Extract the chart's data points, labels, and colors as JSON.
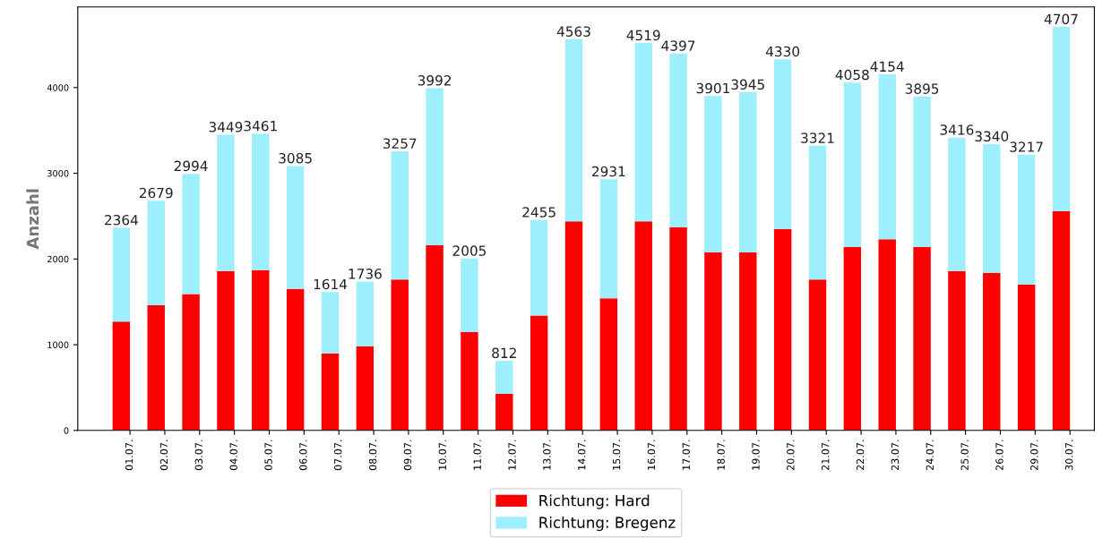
{
  "chart_data": {
    "type": "bar",
    "stacked": true,
    "ylabel": "Anzahl",
    "categories": [
      "01.07.",
      "02.07.",
      "03.07.",
      "04.07.",
      "05.07.",
      "06.07.",
      "07.07.",
      "08.07.",
      "09.07.",
      "10.07.",
      "11.07.",
      "12.07.",
      "13.07.",
      "14.07.",
      "15.07.",
      "16.07.",
      "17.07.",
      "18.07.",
      "19.07.",
      "20.07.",
      "21.07.",
      "22.07.",
      "23.07.",
      "24.07.",
      "25.07.",
      "26.07.",
      "29.07.",
      "30.07."
    ],
    "series": [
      {
        "name": "Richtung: Hard",
        "color": "#ff0000",
        "values": [
          1270,
          1460,
          1590,
          1860,
          1870,
          1650,
          900,
          980,
          1760,
          2160,
          1150,
          430,
          1340,
          2440,
          1540,
          2440,
          2370,
          2080,
          2080,
          2350,
          1760,
          2140,
          2230,
          2140,
          1860,
          1840,
          1700,
          2560
        ]
      },
      {
        "name": "Richtung: Bregenz",
        "color": "#9eeffe",
        "values": [
          1094,
          1219,
          1404,
          1589,
          1591,
          1435,
          714,
          756,
          1497,
          1832,
          855,
          382,
          1115,
          2123,
          1391,
          2079,
          2027,
          1821,
          1865,
          1980,
          1561,
          1918,
          1924,
          1755,
          1556,
          1500,
          1517,
          2147
        ]
      }
    ],
    "totals": [
      "2364",
      "2679",
      "2994",
      "3449",
      "3461",
      "3085",
      "1614",
      "1736",
      "3257",
      "3992",
      "2005",
      "812",
      "2455",
      "4563",
      "2931",
      "4519",
      "4397",
      "3901",
      "3945",
      "4330",
      "3321",
      "4058",
      "4154",
      "3895",
      "3416",
      "3340",
      "3217",
      "4707"
    ],
    "ylim": [
      0,
      4940
    ],
    "yticks": [
      0,
      1000,
      2000,
      3000,
      4000
    ],
    "grid": false,
    "legend": "bottom"
  }
}
